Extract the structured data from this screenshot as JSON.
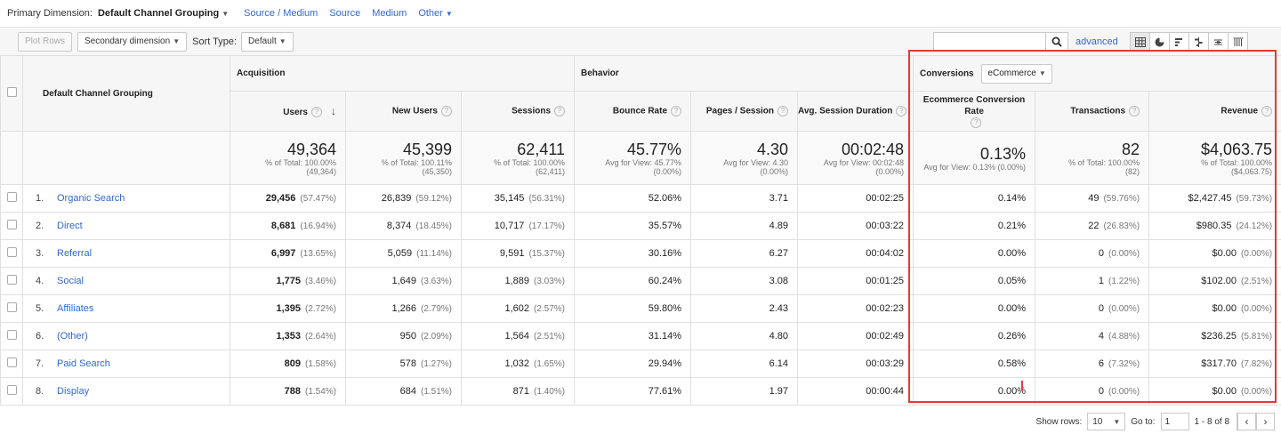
{
  "dimensions": {
    "label": "Primary Dimension:",
    "current": "Default Channel Grouping",
    "others": [
      "Source / Medium",
      "Source",
      "Medium",
      "Other"
    ]
  },
  "toolbar": {
    "plot_rows": "Plot Rows",
    "secondary_dimension": "Secondary dimension",
    "sort_type_label": "Sort Type:",
    "sort_type_value": "Default",
    "search_placeholder": "",
    "advanced": "advanced"
  },
  "table": {
    "dimension_header": "Default Channel Grouping",
    "groups": {
      "acquisition": "Acquisition",
      "behavior": "Behavior",
      "conversions": "Conversions",
      "conversions_select": "eCommerce"
    },
    "columns": [
      "Users",
      "New Users",
      "Sessions",
      "Bounce Rate",
      "Pages / Session",
      "Avg. Session Duration",
      "Ecommerce Conversion Rate",
      "Transactions",
      "Revenue"
    ],
    "totals": [
      {
        "value": "49,364",
        "sub1": "% of Total: 100.00%",
        "sub2": "(49,364)"
      },
      {
        "value": "45,399",
        "sub1": "% of Total: 100.11%",
        "sub2": "(45,350)"
      },
      {
        "value": "62,411",
        "sub1": "% of Total: 100.00%",
        "sub2": "(62,411)"
      },
      {
        "value": "45.77%",
        "sub1": "Avg for View: 45.77%",
        "sub2": "(0.00%)"
      },
      {
        "value": "4.30",
        "sub1": "Avg for View: 4.30",
        "sub2": "(0.00%)"
      },
      {
        "value": "00:02:48",
        "sub1": "Avg for View: 00:02:48",
        "sub2": "(0.00%)"
      },
      {
        "value": "0.13%",
        "sub1": "Avg for View: 0.13% (0.00%)",
        "sub2": ""
      },
      {
        "value": "82",
        "sub1": "% of Total: 100.00%",
        "sub2": "(82)"
      },
      {
        "value": "$4,063.75",
        "sub1": "% of Total: 100.00%",
        "sub2": "($4,063.75)"
      }
    ],
    "rows": [
      {
        "idx": "1.",
        "name": "Organic Search",
        "users": "29,456",
        "users_pct": "(57.47%)",
        "new_users": "26,839",
        "new_users_pct": "(59.12%)",
        "sessions": "35,145",
        "sessions_pct": "(56.31%)",
        "bounce": "52.06%",
        "pages": "3.71",
        "duration": "00:02:25",
        "conv": "0.14%",
        "trans": "49",
        "trans_pct": "(59.76%)",
        "rev": "$2,427.45",
        "rev_pct": "(59.73%)"
      },
      {
        "idx": "2.",
        "name": "Direct",
        "users": "8,681",
        "users_pct": "(16.94%)",
        "new_users": "8,374",
        "new_users_pct": "(18.45%)",
        "sessions": "10,717",
        "sessions_pct": "(17.17%)",
        "bounce": "35.57%",
        "pages": "4.89",
        "duration": "00:03:22",
        "conv": "0.21%",
        "trans": "22",
        "trans_pct": "(26.83%)",
        "rev": "$980.35",
        "rev_pct": "(24.12%)"
      },
      {
        "idx": "3.",
        "name": "Referral",
        "users": "6,997",
        "users_pct": "(13.65%)",
        "new_users": "5,059",
        "new_users_pct": "(11.14%)",
        "sessions": "9,591",
        "sessions_pct": "(15.37%)",
        "bounce": "30.16%",
        "pages": "6.27",
        "duration": "00:04:02",
        "conv": "0.00%",
        "trans": "0",
        "trans_pct": "(0.00%)",
        "rev": "$0.00",
        "rev_pct": "(0.00%)"
      },
      {
        "idx": "4.",
        "name": "Social",
        "users": "1,775",
        "users_pct": "(3.46%)",
        "new_users": "1,649",
        "new_users_pct": "(3.63%)",
        "sessions": "1,889",
        "sessions_pct": "(3.03%)",
        "bounce": "60.24%",
        "pages": "3.08",
        "duration": "00:01:25",
        "conv": "0.05%",
        "trans": "1",
        "trans_pct": "(1.22%)",
        "rev": "$102.00",
        "rev_pct": "(2.51%)"
      },
      {
        "idx": "5.",
        "name": "Affiliates",
        "users": "1,395",
        "users_pct": "(2.72%)",
        "new_users": "1,266",
        "new_users_pct": "(2.79%)",
        "sessions": "1,602",
        "sessions_pct": "(2.57%)",
        "bounce": "59.80%",
        "pages": "2.43",
        "duration": "00:02:23",
        "conv": "0.00%",
        "trans": "0",
        "trans_pct": "(0.00%)",
        "rev": "$0.00",
        "rev_pct": "(0.00%)"
      },
      {
        "idx": "6.",
        "name": "(Other)",
        "users": "1,353",
        "users_pct": "(2.64%)",
        "new_users": "950",
        "new_users_pct": "(2.09%)",
        "sessions": "1,564",
        "sessions_pct": "(2.51%)",
        "bounce": "31.14%",
        "pages": "4.80",
        "duration": "00:02:49",
        "conv": "0.26%",
        "trans": "4",
        "trans_pct": "(4.88%)",
        "rev": "$236.25",
        "rev_pct": "(5.81%)"
      },
      {
        "idx": "7.",
        "name": "Paid Search",
        "users": "809",
        "users_pct": "(1.58%)",
        "new_users": "578",
        "new_users_pct": "(1.27%)",
        "sessions": "1,032",
        "sessions_pct": "(1.65%)",
        "bounce": "29.94%",
        "pages": "6.14",
        "duration": "00:03:29",
        "conv": "0.58%",
        "trans": "6",
        "trans_pct": "(7.32%)",
        "rev": "$317.70",
        "rev_pct": "(7.82%)"
      },
      {
        "idx": "8.",
        "name": "Display",
        "users": "788",
        "users_pct": "(1.54%)",
        "new_users": "684",
        "new_users_pct": "(1.51%)",
        "sessions": "871",
        "sessions_pct": "(1.40%)",
        "bounce": "77.61%",
        "pages": "1.97",
        "duration": "00:00:44",
        "conv": "0.00%",
        "trans": "0",
        "trans_pct": "(0.00%)",
        "rev": "$0.00",
        "rev_pct": "(0.00%)"
      }
    ]
  },
  "footer": {
    "show_rows_label": "Show rows:",
    "show_rows_value": "10",
    "goto_label": "Go to:",
    "goto_value": "1",
    "range": "1 - 8 of 8"
  },
  "colors": {
    "link": "#3367d6",
    "highlight": "#e53935"
  }
}
